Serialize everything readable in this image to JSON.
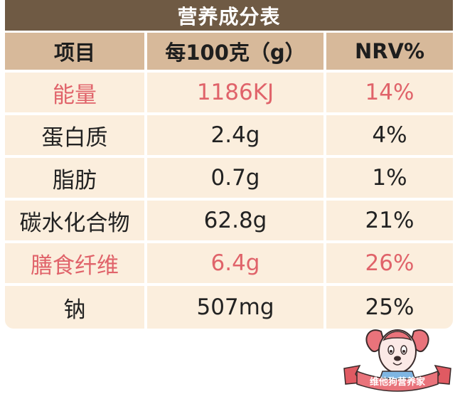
{
  "title": "营养成分表",
  "headers": [
    "项目",
    "每100克（g）",
    "NRV%"
  ],
  "rows": [
    {
      "item": "能量",
      "per100g": "1186KJ",
      "nrv": "14%",
      "highlight": true
    },
    {
      "item": "蛋白质",
      "per100g": "2.4g",
      "nrv": "4%",
      "highlight": false
    },
    {
      "item": "脂肪",
      "per100g": "0.7g",
      "nrv": "1%",
      "highlight": false
    },
    {
      "item": "碳水化合物",
      "per100g": "62.8g",
      "nrv": "21%",
      "highlight": false
    },
    {
      "item": "膳食纤维",
      "per100g": "6.4g",
      "nrv": "26%",
      "highlight": true
    },
    {
      "item": "钠",
      "per100g": "507mg",
      "nrv": "25%",
      "highlight": false
    }
  ],
  "mascot": {
    "banner_text": "维他狗营养家",
    "icon": "dog-mascot-icon"
  },
  "colors": {
    "title_bg": "#6f5a44",
    "header_bg": "#d7b99a",
    "row_bg": "#fbeedd",
    "highlight_text": "#e0636a"
  }
}
